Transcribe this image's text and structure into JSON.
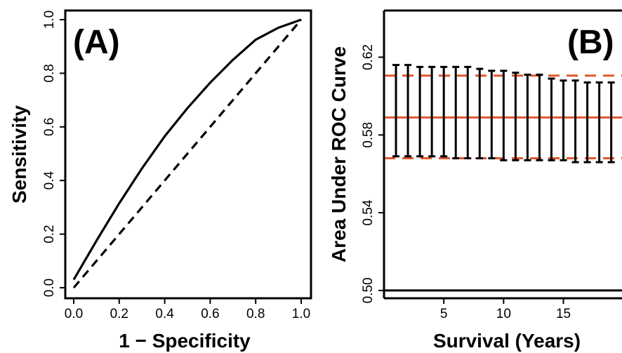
{
  "chart_data": [
    {
      "type": "line",
      "panel_label": "(A)",
      "xlabel": "1 − Specificity",
      "ylabel": "Sensitivity",
      "xlim": [
        0,
        1
      ],
      "ylim": [
        0,
        1
      ],
      "xticks": [
        "0.0",
        "0.2",
        "0.4",
        "0.6",
        "0.8",
        "1.0"
      ],
      "yticks": [
        "0.0",
        "0.2",
        "0.4",
        "0.6",
        "0.8",
        "1.0"
      ],
      "series": [
        {
          "style": "solid",
          "x": [
            0.0,
            0.1,
            0.2,
            0.3,
            0.4,
            0.5,
            0.6,
            0.7,
            0.8,
            0.9,
            1.0
          ],
          "y": [
            0.03,
            0.175,
            0.315,
            0.445,
            0.565,
            0.67,
            0.765,
            0.85,
            0.925,
            0.97,
            1.0
          ]
        },
        {
          "style": "dashed",
          "x": [
            0.0,
            1.0
          ],
          "y": [
            0.0,
            1.0
          ]
        }
      ],
      "grid": false
    },
    {
      "type": "errorbar",
      "panel_label": "(B)",
      "xlabel": "Survival (Years)",
      "ylabel": "Area Under ROC Curve",
      "xlim": [
        0,
        19.9
      ],
      "ylim": [
        0.496,
        0.644
      ],
      "xticks": [
        "5",
        "10",
        "15"
      ],
      "yticks": [
        "0.50",
        "0.54",
        "0.58",
        "0.62"
      ],
      "x": [
        1,
        2,
        3,
        4,
        5,
        6,
        7,
        8,
        9,
        10,
        11,
        12,
        13,
        14,
        15,
        16,
        17,
        18,
        19
      ],
      "upper": [
        0.616,
        0.616,
        0.615,
        0.615,
        0.615,
        0.615,
        0.615,
        0.614,
        0.613,
        0.613,
        0.612,
        0.611,
        0.611,
        0.609,
        0.608,
        0.608,
        0.607,
        0.607,
        0.607
      ],
      "lower": [
        0.569,
        0.569,
        0.569,
        0.569,
        0.569,
        0.568,
        0.568,
        0.568,
        0.568,
        0.567,
        0.567,
        0.567,
        0.567,
        0.567,
        0.567,
        0.566,
        0.566,
        0.566,
        0.566
      ],
      "reference_lines": [
        {
          "y": 0.589,
          "style": "solid",
          "color": "#E0582F"
        },
        {
          "y": 0.6105,
          "style": "dashed",
          "color": "#E0582F"
        },
        {
          "y": 0.568,
          "style": "dashed",
          "color": "#E0582F"
        },
        {
          "y": 0.5,
          "style": "solid",
          "color": "#000000"
        }
      ],
      "grid": false
    }
  ]
}
